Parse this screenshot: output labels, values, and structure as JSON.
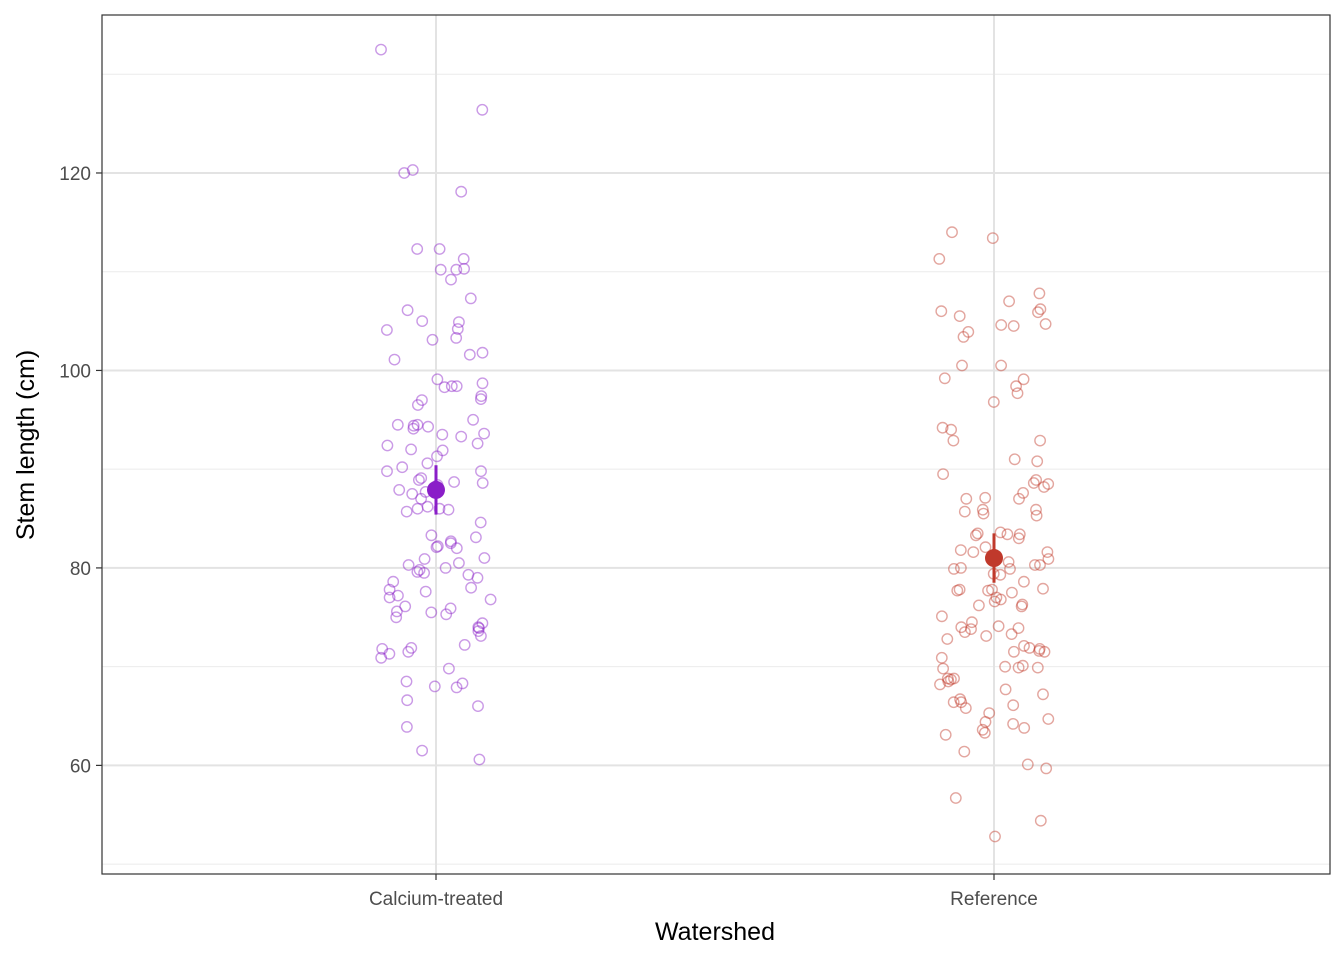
{
  "chart_data": {
    "type": "scatter",
    "subtype": "jitter-with-mean-and-error-bars",
    "xlabel": "Watershed",
    "ylabel": "Stem length (cm)",
    "categories": [
      "Calcium-treated",
      "Reference"
    ],
    "ylim": [
      49,
      136
    ],
    "y_ticks": [
      60,
      80,
      100,
      120
    ],
    "grid": true,
    "legend": "none",
    "colors": {
      "Calcium-treated": "#8a1ec8",
      "Reference": "#c0392b"
    },
    "series": [
      {
        "category": "Calcium-treated",
        "mean": 87.9,
        "error_low": 85.4,
        "error_high": 90.4,
        "values": [
          132.5,
          126.4,
          120.3,
          120.0,
          118.1,
          112.3,
          112.3,
          111.3,
          110.3,
          110.2,
          110.2,
          109.2,
          107.3,
          106.1,
          105.0,
          104.9,
          104.2,
          104.1,
          103.3,
          103.1,
          101.8,
          101.6,
          101.1,
          99.1,
          98.7,
          98.4,
          98.4,
          98.3,
          97.4,
          97.1,
          97.0,
          96.5,
          95.0,
          94.5,
          94.5,
          94.4,
          94.3,
          94.1,
          93.6,
          93.5,
          93.3,
          92.6,
          92.4,
          92.0,
          91.9,
          91.3,
          90.6,
          90.2,
          89.8,
          89.8,
          89.1,
          88.9,
          88.7,
          88.6,
          88.4,
          87.9,
          87.7,
          87.5,
          87.0,
          86.2,
          86.0,
          86.0,
          85.9,
          85.7,
          84.6,
          83.3,
          83.1,
          82.7,
          82.5,
          82.2,
          82.1,
          82.0,
          81.0,
          80.9,
          80.5,
          80.3,
          80.0,
          79.8,
          79.6,
          79.5,
          79.3,
          79.0,
          78.6,
          78.0,
          77.8,
          77.6,
          77.2,
          77.0,
          76.8,
          76.1,
          75.9,
          75.6,
          75.5,
          75.3,
          75.0,
          74.4,
          74.0,
          73.9,
          73.6,
          73.1,
          72.2,
          71.9,
          71.8,
          71.5,
          71.3,
          70.9,
          69.8,
          68.5,
          68.3,
          68.0,
          67.9,
          66.6,
          66.0,
          63.9,
          61.5,
          60.6
        ]
      },
      {
        "category": "Reference",
        "mean": 81.0,
        "error_low": 78.5,
        "error_high": 83.5,
        "values": [
          114.0,
          113.4,
          111.3,
          107.8,
          107.0,
          106.2,
          106.0,
          105.9,
          105.5,
          104.7,
          104.6,
          104.5,
          103.9,
          103.4,
          100.5,
          100.5,
          99.2,
          99.1,
          98.4,
          97.7,
          96.8,
          94.2,
          94.0,
          92.9,
          92.9,
          91.0,
          90.8,
          89.5,
          88.9,
          88.6,
          88.5,
          88.2,
          87.6,
          87.1,
          87.0,
          87.0,
          85.9,
          85.9,
          85.7,
          85.5,
          85.3,
          83.6,
          83.5,
          83.4,
          83.4,
          83.3,
          83.0,
          82.1,
          81.8,
          81.6,
          81.6,
          80.9,
          80.6,
          80.3,
          80.3,
          80.0,
          79.9,
          79.9,
          79.4,
          79.3,
          78.6,
          77.9,
          77.8,
          77.8,
          77.7,
          77.7,
          77.5,
          77.0,
          76.8,
          76.6,
          76.3,
          76.2,
          76.1,
          75.1,
          74.5,
          74.1,
          74.0,
          73.9,
          73.8,
          73.5,
          73.3,
          73.1,
          72.8,
          72.1,
          71.9,
          71.8,
          71.6,
          71.5,
          71.5,
          70.9,
          70.1,
          70.0,
          69.9,
          69.9,
          69.8,
          68.8,
          68.8,
          68.7,
          68.5,
          68.2,
          67.7,
          67.2,
          66.7,
          66.4,
          66.4,
          66.1,
          65.8,
          65.3,
          64.7,
          64.4,
          64.2,
          63.8,
          63.6,
          63.3,
          63.1,
          61.4,
          60.1,
          59.7,
          56.7,
          54.4,
          52.8
        ]
      }
    ]
  }
}
